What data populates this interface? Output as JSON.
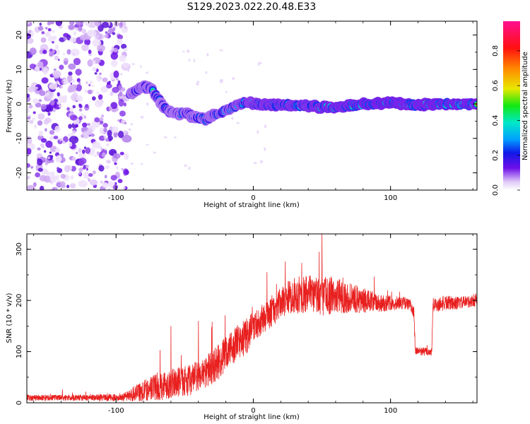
{
  "figure_title": "S129.2023.022.20.48.E33",
  "colors": {
    "snr_line": "#e8201f",
    "axes": "#000000",
    "background": "#ffffff"
  },
  "chart_data": [
    {
      "type": "heatmap",
      "name": "spectrogram",
      "xlabel": "Height of straight line (km)",
      "ylabel": "Frequency (Hz)",
      "xlim": [
        -165,
        163
      ],
      "ylim": [
        -25,
        24
      ],
      "x_ticks": [
        -100,
        0,
        100
      ],
      "y_ticks": [
        -20,
        -10,
        0,
        10,
        20
      ],
      "colorbar": {
        "label": "Normalized spectral amplitude",
        "range": [
          0,
          0.97
        ],
        "ticks": [
          0.0,
          0.2,
          0.4,
          0.6,
          0.8
        ],
        "colormap": [
          "#ffffff",
          "#e0c8f7",
          "#6d10e8",
          "#1018e8",
          "#00a0ff",
          "#00e8c8",
          "#12e812",
          "#e8e800",
          "#ff8800",
          "#ff1010",
          "#ff1090"
        ]
      },
      "noise_region_x": [
        -165,
        -92
      ],
      "ridge": {
        "x": [
          -90,
          -85,
          -80,
          -75,
          -70,
          -65,
          -60,
          -55,
          -50,
          -45,
          -40,
          -35,
          -30,
          -25,
          -20,
          -15,
          -10,
          -5,
          0,
          10,
          20,
          30,
          40,
          50,
          60,
          70,
          80,
          90,
          100,
          110,
          120,
          130,
          140,
          150,
          163
        ],
        "freq": [
          3,
          4,
          5,
          4.5,
          2,
          -1,
          -2.5,
          -3,
          -2.5,
          -3.5,
          -4,
          -4.5,
          -3.5,
          -3,
          -2,
          -1,
          0,
          0.5,
          0,
          -0.5,
          0,
          -0.5,
          -0.5,
          -1,
          -1,
          -0.5,
          0,
          0,
          0.5,
          0,
          -0.5,
          0,
          0,
          0,
          0
        ],
        "amplitude": [
          0.45,
          0.55,
          0.5,
          0.55,
          0.5,
          0.45,
          0.5,
          0.5,
          0.55,
          0.55,
          0.5,
          0.55,
          0.55,
          0.6,
          0.6,
          0.65,
          0.7,
          0.75,
          0.8,
          0.85,
          0.85,
          0.85,
          0.85,
          0.9,
          0.9,
          0.9,
          0.92,
          0.93,
          0.93,
          0.92,
          0.92,
          0.93,
          0.93,
          0.93,
          0.93
        ]
      }
    },
    {
      "type": "line",
      "name": "snr",
      "xlabel": "Height of straight line (km)",
      "ylabel": "SNR (10 * v/v)",
      "xlim": [
        -165,
        163
      ],
      "ylim": [
        0,
        330
      ],
      "x_ticks": [
        -100,
        0,
        100
      ],
      "y_ticks": [
        0,
        100,
        200,
        300
      ],
      "envelope": {
        "x": [
          -165,
          -140,
          -120,
          -100,
          -92,
          -85,
          -75,
          -65,
          -55,
          -45,
          -35,
          -25,
          -15,
          -5,
          0,
          5,
          10,
          15,
          20,
          25,
          30,
          40,
          50,
          60,
          70,
          80,
          90,
          100,
          110,
          115,
          117,
          118,
          125,
          130,
          131,
          140,
          150,
          163
        ],
        "base": [
          10,
          10,
          10,
          10,
          12,
          20,
          28,
          35,
          40,
          45,
          60,
          80,
          110,
          130,
          150,
          160,
          170,
          180,
          195,
          205,
          210,
          210,
          210,
          210,
          205,
          200,
          195,
          195,
          195,
          190,
          175,
          100,
          100,
          100,
          190,
          195,
          195,
          200
        ],
        "spread": [
          6,
          6,
          6,
          7,
          10,
          18,
          25,
          30,
          28,
          30,
          32,
          35,
          35,
          35,
          30,
          30,
          28,
          30,
          30,
          32,
          35,
          38,
          40,
          35,
          30,
          25,
          20,
          15,
          12,
          12,
          15,
          10,
          8,
          10,
          15,
          15,
          12,
          12
        ]
      },
      "peaks": [
        {
          "x": 50,
          "y": 330
        },
        {
          "x": 48,
          "y": 295
        },
        {
          "x": 10,
          "y": 255
        },
        {
          "x": -60,
          "y": 150
        },
        {
          "x": -40,
          "y": 160
        }
      ]
    }
  ]
}
